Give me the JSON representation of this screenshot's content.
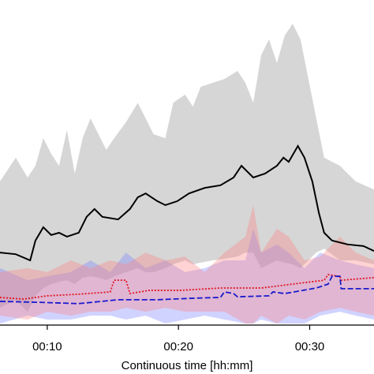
{
  "chart_data": {
    "type": "line",
    "x_label": "Continuous time [hh:mm]",
    "xlim": [
      6.4,
      34.9
    ],
    "xticks": [
      {
        "value": 10,
        "label": "00:10"
      },
      {
        "value": 20,
        "label": "00:20"
      },
      {
        "value": 30,
        "label": "00:30"
      }
    ],
    "ylim": [
      0,
      100
    ],
    "series": [
      {
        "kind": "band",
        "color": "#d6d6d6",
        "x": [
          6.4,
          7.6,
          8.5,
          9.1,
          9.7,
          10.3,
          10.9,
          11.5,
          12.1,
          12.7,
          13.3,
          13.9,
          14.5,
          15.1,
          16.0,
          16.9,
          17.5,
          18.1,
          19.0,
          19.6,
          20.5,
          21.1,
          21.7,
          22.6,
          23.5,
          24.5,
          25.1,
          25.7,
          26.3,
          26.9,
          27.5,
          28.1,
          28.7,
          29.3,
          29.9,
          30.5,
          31.1,
          32.3,
          33.5,
          34.9
        ],
        "upper": [
          44.2,
          51.5,
          45.4,
          49.0,
          57.5,
          52.7,
          49.0,
          60.0,
          46.6,
          57.5,
          63.6,
          58.7,
          53.9,
          57.5,
          62.4,
          68.4,
          63.6,
          58.7,
          57.5,
          68.4,
          70.9,
          67.2,
          73.3,
          74.5,
          75.7,
          78.2,
          74.5,
          68.4,
          83.0,
          87.9,
          80.6,
          89.1,
          92.7,
          87.9,
          75.7,
          63.6,
          51.5,
          49.0,
          44.2,
          41.7
        ],
        "lower": [
          5.3,
          7.8,
          4.1,
          9.0,
          11.4,
          12.6,
          13.3,
          13.8,
          12.6,
          14.6,
          15.0,
          14.6,
          13.8,
          15.0,
          16.3,
          17.5,
          16.3,
          16.3,
          17.5,
          18.7,
          19.9,
          18.7,
          19.2,
          19.9,
          20.4,
          21.1,
          22.3,
          22.3,
          17.5,
          18.7,
          19.9,
          19.2,
          18.7,
          17.5,
          19.9,
          22.3,
          23.5,
          19.9,
          19.9,
          18.7
        ]
      },
      {
        "kind": "band",
        "color": "rgba(120,130,255,0.35)",
        "x": [
          6.4,
          8.5,
          10.0,
          11.8,
          13.3,
          14.8,
          16.0,
          17.5,
          19.0,
          20.5,
          22.0,
          23.5,
          25.1,
          25.7,
          26.3,
          27.5,
          28.4,
          29.6,
          30.8,
          32.3,
          33.5,
          34.9
        ],
        "upper": [
          17.5,
          13.8,
          15.0,
          16.3,
          19.9,
          16.3,
          22.3,
          17.5,
          19.9,
          16.3,
          17.5,
          19.9,
          19.9,
          29.6,
          22.3,
          24.8,
          22.3,
          17.5,
          22.3,
          19.9,
          18.7,
          17.5
        ],
        "lower": [
          0.5,
          2.9,
          1.7,
          1.7,
          2.9,
          2.9,
          1.7,
          2.9,
          0.5,
          1.7,
          2.9,
          1.7,
          0.5,
          0.5,
          1.7,
          0.5,
          0.5,
          0.5,
          2.9,
          4.1,
          2.9,
          1.7
        ]
      },
      {
        "kind": "band",
        "color": "rgba(255,130,130,0.35)",
        "x": [
          6.4,
          8.5,
          10.0,
          11.8,
          13.3,
          14.8,
          16.0,
          17.5,
          19.0,
          20.5,
          22.0,
          23.5,
          25.1,
          25.7,
          26.3,
          27.5,
          28.4,
          29.6,
          30.8,
          32.3,
          33.5,
          34.9
        ],
        "upper": [
          16.3,
          17.5,
          16.3,
          19.9,
          17.5,
          19.9,
          18.7,
          22.3,
          19.9,
          21.1,
          16.3,
          22.3,
          27.2,
          36.9,
          22.3,
          29.6,
          27.2,
          19.9,
          21.1,
          27.2,
          22.3,
          19.9
        ],
        "lower": [
          2.9,
          1.7,
          4.1,
          2.9,
          4.1,
          4.1,
          5.3,
          4.1,
          5.3,
          4.1,
          4.1,
          4.1,
          0.5,
          0.5,
          2.9,
          0.5,
          2.9,
          1.7,
          4.1,
          5.3,
          4.1,
          2.9
        ]
      },
      {
        "kind": "line",
        "color": "#000000",
        "dash": "solid",
        "x": [
          6.4,
          7.6,
          8.7,
          9.1,
          9.7,
          10.3,
          10.9,
          11.5,
          12.4,
          13.0,
          13.6,
          14.2,
          15.4,
          16.3,
          16.9,
          17.5,
          18.4,
          19.0,
          19.9,
          20.8,
          22.0,
          23.2,
          24.2,
          24.8,
          25.7,
          26.6,
          27.5,
          28.0,
          28.4,
          29.1,
          29.6,
          30.2,
          30.7,
          31.1,
          31.7,
          32.9,
          34.1,
          34.9
        ],
        "values": [
          22.3,
          21.8,
          19.9,
          26.0,
          30.1,
          27.7,
          28.4,
          27.2,
          28.4,
          33.3,
          35.7,
          33.3,
          32.5,
          35.7,
          39.3,
          40.5,
          38.1,
          36.9,
          38.1,
          40.5,
          42.2,
          43.0,
          45.4,
          49.0,
          45.4,
          46.6,
          49.0,
          51.5,
          50.2,
          55.1,
          51.5,
          44.2,
          34.5,
          28.4,
          26.0,
          24.8,
          24.3,
          22.8
        ]
      },
      {
        "kind": "line",
        "color": "#e0141e",
        "dash": "dotted",
        "x": [
          6.4,
          8.2,
          10.0,
          12.4,
          14.8,
          15.1,
          16.0,
          16.3,
          17.8,
          20.2,
          23.2,
          26.3,
          28.7,
          31.1,
          31.4,
          32.3,
          32.4,
          34.9
        ],
        "values": [
          8.5,
          8.0,
          9.0,
          9.5,
          10.2,
          13.8,
          13.8,
          9.7,
          10.7,
          10.7,
          11.4,
          11.4,
          12.6,
          13.8,
          15.5,
          15.0,
          13.8,
          14.6
        ]
      },
      {
        "kind": "line",
        "color": "#1a1acc",
        "dash": "dashed",
        "x": [
          6.4,
          9.4,
          12.4,
          15.4,
          18.4,
          21.4,
          23.2,
          23.5,
          24.2,
          24.5,
          26.9,
          27.2,
          28.1,
          30.5,
          31.4,
          31.7,
          32.3,
          32.4,
          34.9
        ],
        "values": [
          7.3,
          7.0,
          6.6,
          7.8,
          7.8,
          8.3,
          8.5,
          10.2,
          9.7,
          8.7,
          9.0,
          10.2,
          9.7,
          11.4,
          12.6,
          15.0,
          15.0,
          11.2,
          11.2
        ]
      }
    ]
  }
}
